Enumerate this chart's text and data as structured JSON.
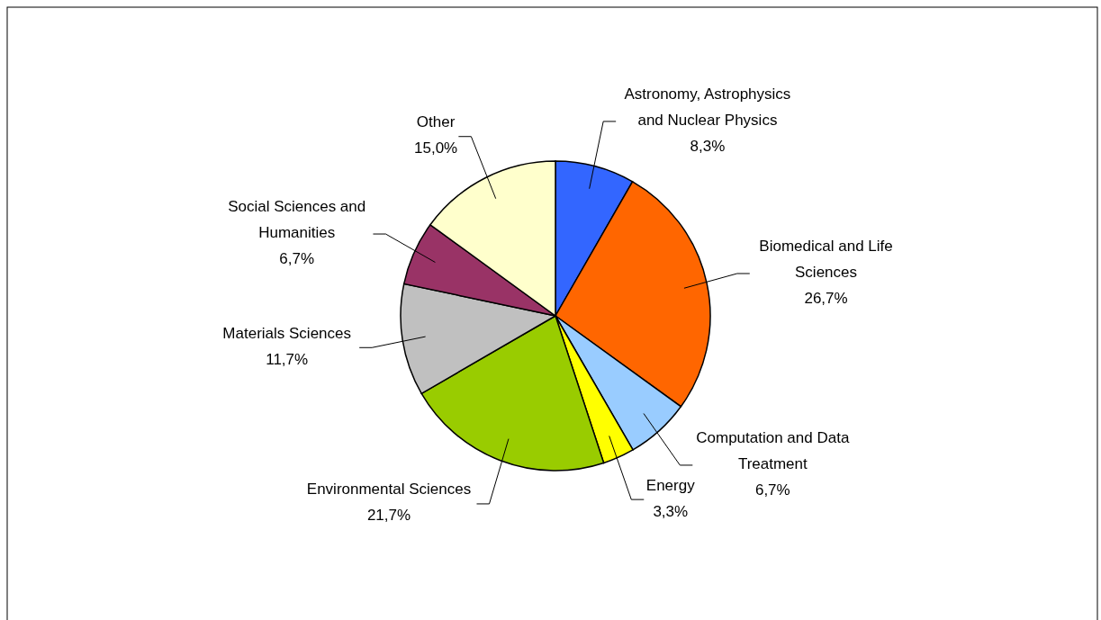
{
  "chart_data": {
    "type": "pie",
    "categories": [
      "Astronomy, Astrophysics and Nuclear Physics",
      "Biomedical and Life Sciences",
      "Computation and Data Treatment",
      "Energy",
      "Environmental Sciences",
      "Materials Sciences",
      "Social Sciences and Humanities",
      "Other"
    ],
    "values": [
      8.3,
      26.7,
      6.7,
      3.3,
      21.7,
      11.7,
      6.7,
      15.0
    ],
    "colors": [
      "#3366ff",
      "#ff6600",
      "#99ccff",
      "#ffff00",
      "#99cc00",
      "#c0c0c0",
      "#993366",
      "#ffffcc"
    ],
    "value_labels": [
      "8,3%",
      "26,7%",
      "6,7%",
      "3,3%",
      "21,7%",
      "11,7%",
      "6,7%",
      "15,0%"
    ]
  }
}
